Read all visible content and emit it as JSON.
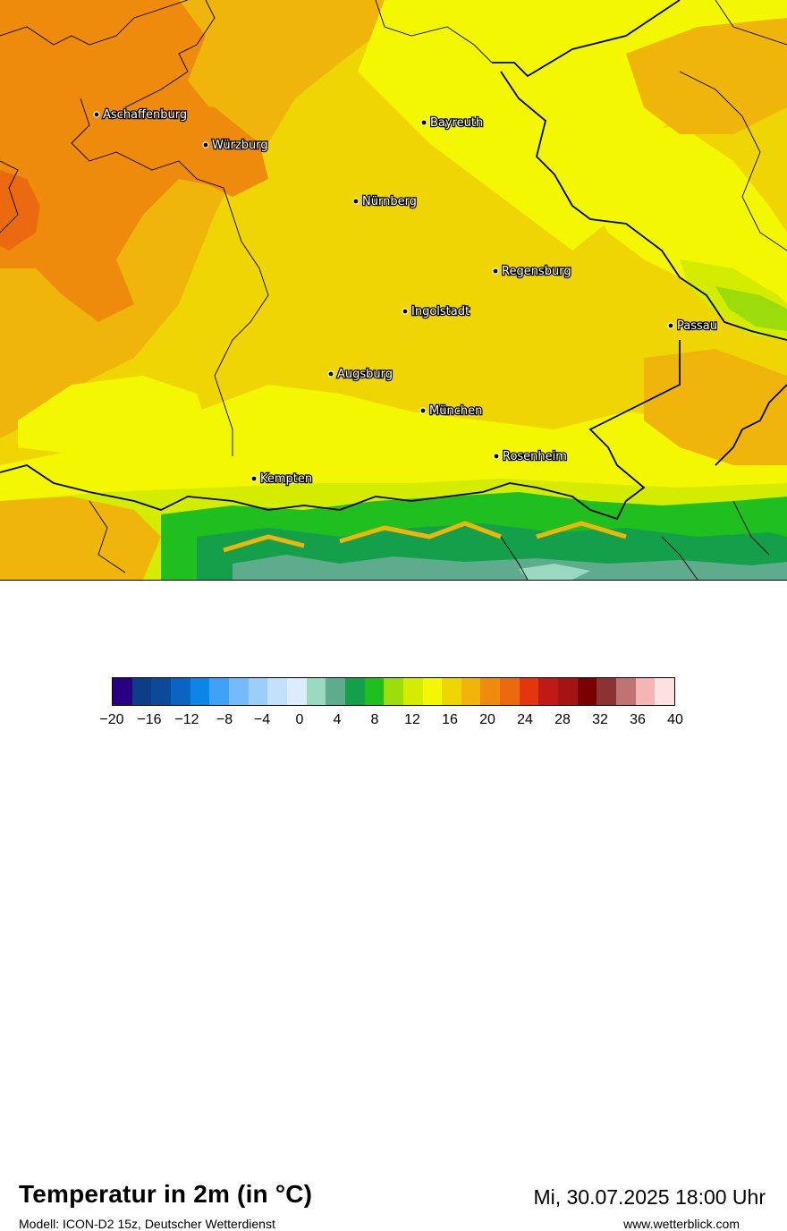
{
  "map": {
    "cities": [
      {
        "name": "Aschaffenburg"
      },
      {
        "name": "Würzburg"
      },
      {
        "name": "Bayreuth"
      },
      {
        "name": "Nürnberg"
      },
      {
        "name": "Regensburg"
      },
      {
        "name": "Ingolstadt"
      },
      {
        "name": "Passau"
      },
      {
        "name": "Augsburg"
      },
      {
        "name": "München"
      },
      {
        "name": "Rosenheim"
      },
      {
        "name": "Kempten"
      }
    ]
  },
  "header": {
    "title": "Temperatur in 2m (in °C)",
    "subtitle": "Modell: ICON-D2 15z, Deutscher Wetterdienst",
    "datetime": "Mi, 30.07.2025 18:00 Uhr",
    "website": "www.wetterblick.com"
  },
  "legend": {
    "unit": "°C",
    "colors": [
      "#2a0082",
      "#0d3d87",
      "#0a4a96",
      "#0a65c2",
      "#0a86e8",
      "#3ea1f5",
      "#76baf9",
      "#9ccdfb",
      "#c3e0fc",
      "#ddecfd",
      "#99d9c0",
      "#5eab8d",
      "#14a04b",
      "#1ebf1e",
      "#9cdc0a",
      "#d4ec00",
      "#f3f700",
      "#f0d505",
      "#f0b50a",
      "#ee8a0c",
      "#ec6a0f",
      "#e3360f",
      "#bf1a18",
      "#a51414",
      "#7a0000",
      "#8c3232",
      "#c07373",
      "#f3b5b5",
      "#fde0e0"
    ],
    "ticks": [
      "−20",
      "−16",
      "−12",
      "−8",
      "−4",
      "0",
      "4",
      "8",
      "12",
      "16",
      "20",
      "24",
      "28",
      "32",
      "36",
      "40"
    ],
    "min": -20,
    "max": 40
  }
}
